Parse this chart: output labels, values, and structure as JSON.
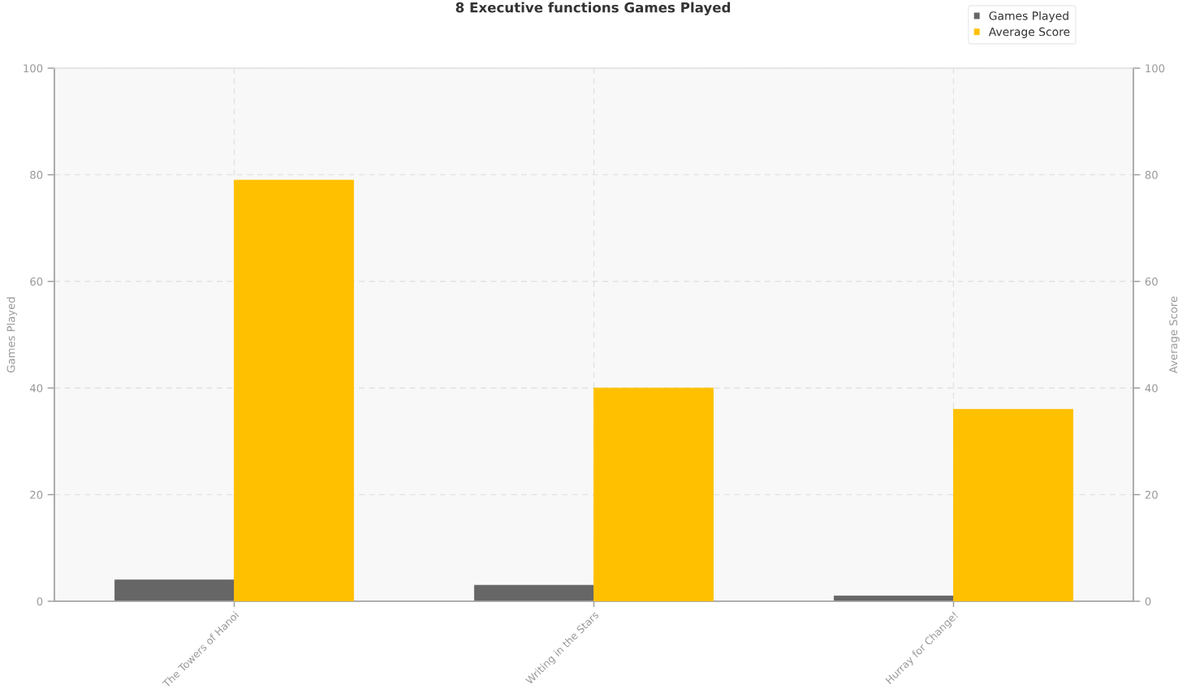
{
  "chart_data": {
    "type": "bar",
    "title": "8 Executive functions Games Played",
    "categories": [
      "The Towers of Hanoi",
      "Writing in the Stars",
      "Hurray for Change!"
    ],
    "series": [
      {
        "name": "Games Played",
        "color": "#666666",
        "values": [
          4,
          3,
          1
        ]
      },
      {
        "name": "Average Score",
        "color": "#ffc000",
        "values": [
          79,
          40,
          36
        ],
        "axis": "y2"
      }
    ],
    "ylabel": "Games Played",
    "y2label": "Average Score",
    "ylim": [
      0,
      100
    ],
    "yticks": [
      0,
      20,
      40,
      60,
      80,
      100
    ],
    "y2lim": [
      0,
      100
    ],
    "y2ticks": [
      0,
      20,
      40,
      60,
      80,
      100
    ],
    "grid": true,
    "legend": "top right"
  }
}
